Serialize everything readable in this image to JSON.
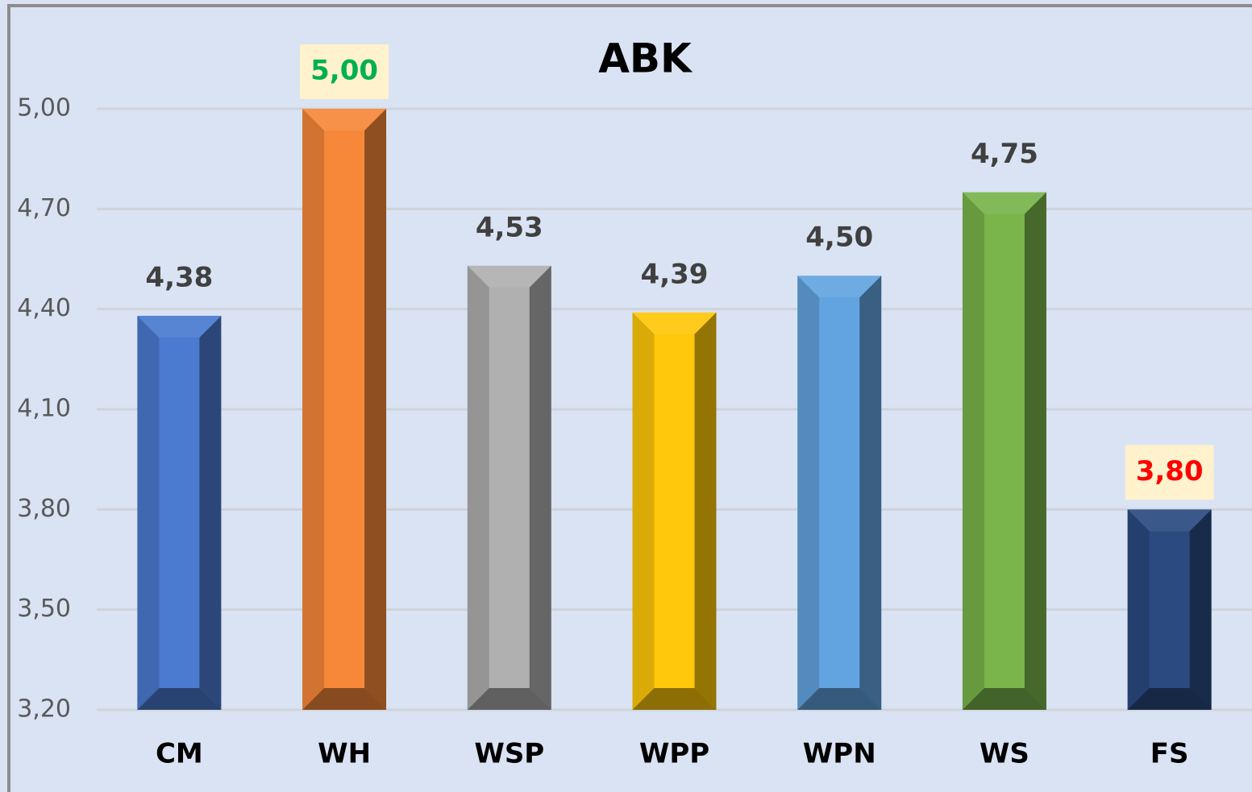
{
  "chart_data": {
    "type": "bar",
    "title": "ABK",
    "categories": [
      "CM",
      "WH",
      "WSP",
      "WPP",
      "WPN",
      "WS",
      "FS"
    ],
    "values": [
      4.38,
      5.0,
      4.53,
      4.39,
      4.5,
      4.75,
      3.8
    ],
    "value_labels": [
      "4,38",
      "5,00",
      "4,53",
      "4,39",
      "4,50",
      "4,75",
      "3,80"
    ],
    "colors": [
      "#4a7bd0",
      "#f7883a",
      "#b0b0b0",
      "#ffc80a",
      "#62a4e0",
      "#79b54b",
      "#2b4a80"
    ],
    "value_label_colors": [
      "#404040",
      "#00b050",
      "#404040",
      "#404040",
      "#404040",
      "#404040",
      "#ff0000"
    ],
    "value_label_backgrounds": [
      null,
      "#fff2cc",
      null,
      null,
      null,
      null,
      "#fff2cc"
    ],
    "ylim": [
      3.2,
      5.0
    ],
    "yticks": [
      {
        "value": 3.2,
        "label": "3,20"
      },
      {
        "value": 3.5,
        "label": "3,50"
      },
      {
        "value": 3.8,
        "label": "3,80"
      },
      {
        "value": 4.1,
        "label": "4,10"
      },
      {
        "value": 4.4,
        "label": "4,40"
      },
      {
        "value": 4.7,
        "label": "4,70"
      },
      {
        "value": 5.0,
        "label": "5,00"
      }
    ],
    "grid": true
  }
}
